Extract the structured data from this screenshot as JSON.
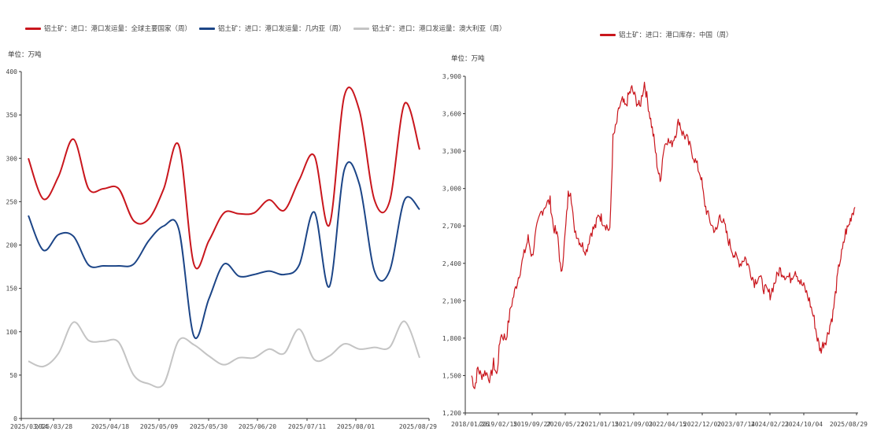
{
  "colors": {
    "red": "#c9161d",
    "blue": "#1c4587",
    "gray": "#c4c4c4",
    "axis": "#333333"
  },
  "left": {
    "unit": "单位：万吨",
    "chart_data": {
      "type": "line",
      "ylim": [
        0,
        400
      ],
      "y_ticks": [
        "0",
        "50",
        "100",
        "150",
        "200",
        "250",
        "300",
        "350",
        "400"
      ],
      "x_ticks": [
        "2025/03/14",
        "2025/03/28",
        "2025/04/18",
        "2025/05/09",
        "2025/05/30",
        "2025/06/20",
        "2025/07/11",
        "2025/08/01",
        "2025/08/29"
      ],
      "series": [
        {
          "name": "铝土矿：进口：港口发运量：全球主要国家（周）",
          "color": "#c9161d",
          "points": [
            [
              0,
              300
            ],
            [
              1,
              253
            ],
            [
              2,
              279
            ],
            [
              3,
              322
            ],
            [
              4,
              265
            ],
            [
              5,
              265
            ],
            [
              6,
              265
            ],
            [
              7,
              228
            ],
            [
              8,
              230
            ],
            [
              9,
              265
            ],
            [
              10,
              315
            ],
            [
              11,
              178
            ],
            [
              12,
              205
            ],
            [
              13,
              237
            ],
            [
              14,
              236
            ],
            [
              15,
              237
            ],
            [
              16,
              252
            ],
            [
              17,
              240
            ],
            [
              18,
              275
            ],
            [
              19,
              303
            ],
            [
              20,
              223
            ],
            [
              21,
              372
            ],
            [
              22,
              355
            ],
            [
              23,
              252
            ],
            [
              24,
              250
            ],
            [
              25,
              363
            ],
            [
              26,
              310
            ]
          ]
        },
        {
          "name": "铝土矿：进口：港口发运量：几内亚（周）",
          "color": "#1c4587",
          "points": [
            [
              0,
              234
            ],
            [
              1,
              194
            ],
            [
              2,
              212
            ],
            [
              3,
              210
            ],
            [
              4,
              177
            ],
            [
              5,
              176
            ],
            [
              6,
              176
            ],
            [
              7,
              178
            ],
            [
              8,
              205
            ],
            [
              9,
              222
            ],
            [
              10,
              218
            ],
            [
              11,
              95
            ],
            [
              12,
              138
            ],
            [
              13,
              178
            ],
            [
              14,
              164
            ],
            [
              15,
              166
            ],
            [
              16,
              170
            ],
            [
              17,
              166
            ],
            [
              18,
              177
            ],
            [
              19,
              238
            ],
            [
              20,
              152
            ],
            [
              21,
              287
            ],
            [
              22,
              270
            ],
            [
              23,
              170
            ],
            [
              24,
              170
            ],
            [
              25,
              252
            ],
            [
              26,
              241
            ]
          ]
        },
        {
          "name": "铝土矿：进口：港口发运量：澳大利亚（周）",
          "color": "#c4c4c4",
          "points": [
            [
              0,
              66
            ],
            [
              1,
              60
            ],
            [
              2,
              75
            ],
            [
              3,
              111
            ],
            [
              4,
              90
            ],
            [
              5,
              89
            ],
            [
              6,
              88
            ],
            [
              7,
              50
            ],
            [
              8,
              40
            ],
            [
              9,
              40
            ],
            [
              10,
              90
            ],
            [
              11,
              85
            ],
            [
              12,
              72
            ],
            [
              13,
              62
            ],
            [
              14,
              70
            ],
            [
              15,
              70
            ],
            [
              16,
              80
            ],
            [
              17,
              75
            ],
            [
              18,
              103
            ],
            [
              19,
              68
            ],
            [
              20,
              72
            ],
            [
              21,
              86
            ],
            [
              22,
              80
            ],
            [
              23,
              82
            ],
            [
              24,
              82
            ],
            [
              25,
              112
            ],
            [
              26,
              70
            ]
          ]
        }
      ]
    }
  },
  "right": {
    "unit": "单位：万吨",
    "chart_data": {
      "type": "line",
      "ylim": [
        1200,
        3900
      ],
      "y_ticks": [
        "1,200",
        "1,500",
        "1,800",
        "2,100",
        "2,400",
        "2,700",
        "3,000",
        "3,300",
        "3,600",
        "3,900"
      ],
      "x_ticks": [
        "2018/01/26",
        "2019/02/15",
        "2019/09/27",
        "2020/05/22",
        "2021/01/15",
        "2021/09/03",
        "2022/04/15",
        "2022/12/02",
        "2023/07/14",
        "2024/02/23",
        "2024/10/04",
        "2025/08/29"
      ],
      "series": [
        {
          "name": "铝土矿：进口：港口库存：中国（周）",
          "color": "#c9161d",
          "anchors": [
            [
              0,
              1500
            ],
            [
              0.2,
              1400
            ],
            [
              0.4,
              1560
            ],
            [
              0.6,
              1500
            ],
            [
              0.9,
              1530
            ],
            [
              1.2,
              1470
            ],
            [
              1.4,
              1600
            ],
            [
              1.6,
              1500
            ],
            [
              1.85,
              1830
            ],
            [
              2.2,
              1800
            ],
            [
              2.5,
              2050
            ],
            [
              2.8,
              2200
            ],
            [
              3.1,
              2350
            ],
            [
              3.4,
              2500
            ],
            [
              3.6,
              2600
            ],
            [
              3.85,
              2450
            ],
            [
              4.1,
              2650
            ],
            [
              4.4,
              2800
            ],
            [
              4.7,
              2870
            ],
            [
              5.0,
              2900
            ],
            [
              5.2,
              2700
            ],
            [
              5.5,
              2600
            ],
            [
              5.7,
              2300
            ],
            [
              5.9,
              2550
            ],
            [
              6.0,
              2700
            ],
            [
              6.15,
              2950
            ],
            [
              6.3,
              3000
            ],
            [
              6.5,
              2700
            ],
            [
              6.8,
              2600
            ],
            [
              7.0,
              2550
            ],
            [
              7.3,
              2500
            ],
            [
              7.6,
              2650
            ],
            [
              7.9,
              2700
            ],
            [
              8.1,
              2800
            ],
            [
              8.3,
              2750
            ],
            [
              8.6,
              2700
            ],
            [
              8.8,
              2650
            ],
            [
              9.0,
              3400
            ],
            [
              9.2,
              3500
            ],
            [
              9.4,
              3650
            ],
            [
              9.6,
              3700
            ],
            [
              9.8,
              3650
            ],
            [
              10.0,
              3750
            ],
            [
              10.2,
              3800
            ],
            [
              10.5,
              3700
            ],
            [
              10.7,
              3650
            ],
            [
              11.0,
              3850
            ],
            [
              11.2,
              3700
            ],
            [
              11.4,
              3550
            ],
            [
              11.6,
              3400
            ],
            [
              11.8,
              3200
            ],
            [
              12.0,
              3050
            ],
            [
              12.2,
              3300
            ],
            [
              12.4,
              3400
            ],
            [
              12.7,
              3350
            ],
            [
              13.0,
              3450
            ],
            [
              13.2,
              3550
            ],
            [
              13.4,
              3450
            ],
            [
              13.7,
              3400
            ],
            [
              14.0,
              3300
            ],
            [
              14.3,
              3200
            ],
            [
              14.6,
              3100
            ],
            [
              14.8,
              2900
            ],
            [
              15.0,
              2800
            ],
            [
              15.3,
              2700
            ],
            [
              15.6,
              2650
            ],
            [
              15.8,
              2800
            ],
            [
              16.1,
              2700
            ],
            [
              16.3,
              2600
            ],
            [
              16.6,
              2500
            ],
            [
              16.8,
              2450
            ],
            [
              17.1,
              2400
            ],
            [
              17.4,
              2450
            ],
            [
              17.7,
              2350
            ],
            [
              18.0,
              2250
            ],
            [
              18.3,
              2300
            ],
            [
              18.6,
              2200
            ],
            [
              19.0,
              2150
            ],
            [
              19.3,
              2250
            ],
            [
              19.6,
              2350
            ],
            [
              20.0,
              2300
            ],
            [
              20.3,
              2280
            ],
            [
              20.6,
              2350
            ],
            [
              20.9,
              2250
            ],
            [
              21.2,
              2200
            ],
            [
              21.5,
              2100
            ],
            [
              21.8,
              1950
            ],
            [
              22.0,
              1800
            ],
            [
              22.2,
              1700
            ],
            [
              22.4,
              1760
            ],
            [
              22.6,
              1800
            ],
            [
              22.8,
              1900
            ],
            [
              23.0,
              2000
            ],
            [
              23.2,
              2200
            ],
            [
              23.4,
              2400
            ],
            [
              23.6,
              2500
            ],
            [
              23.8,
              2650
            ],
            [
              24.0,
              2700
            ],
            [
              24.2,
              2800
            ],
            [
              24.4,
              2850
            ]
          ]
        }
      ]
    }
  }
}
